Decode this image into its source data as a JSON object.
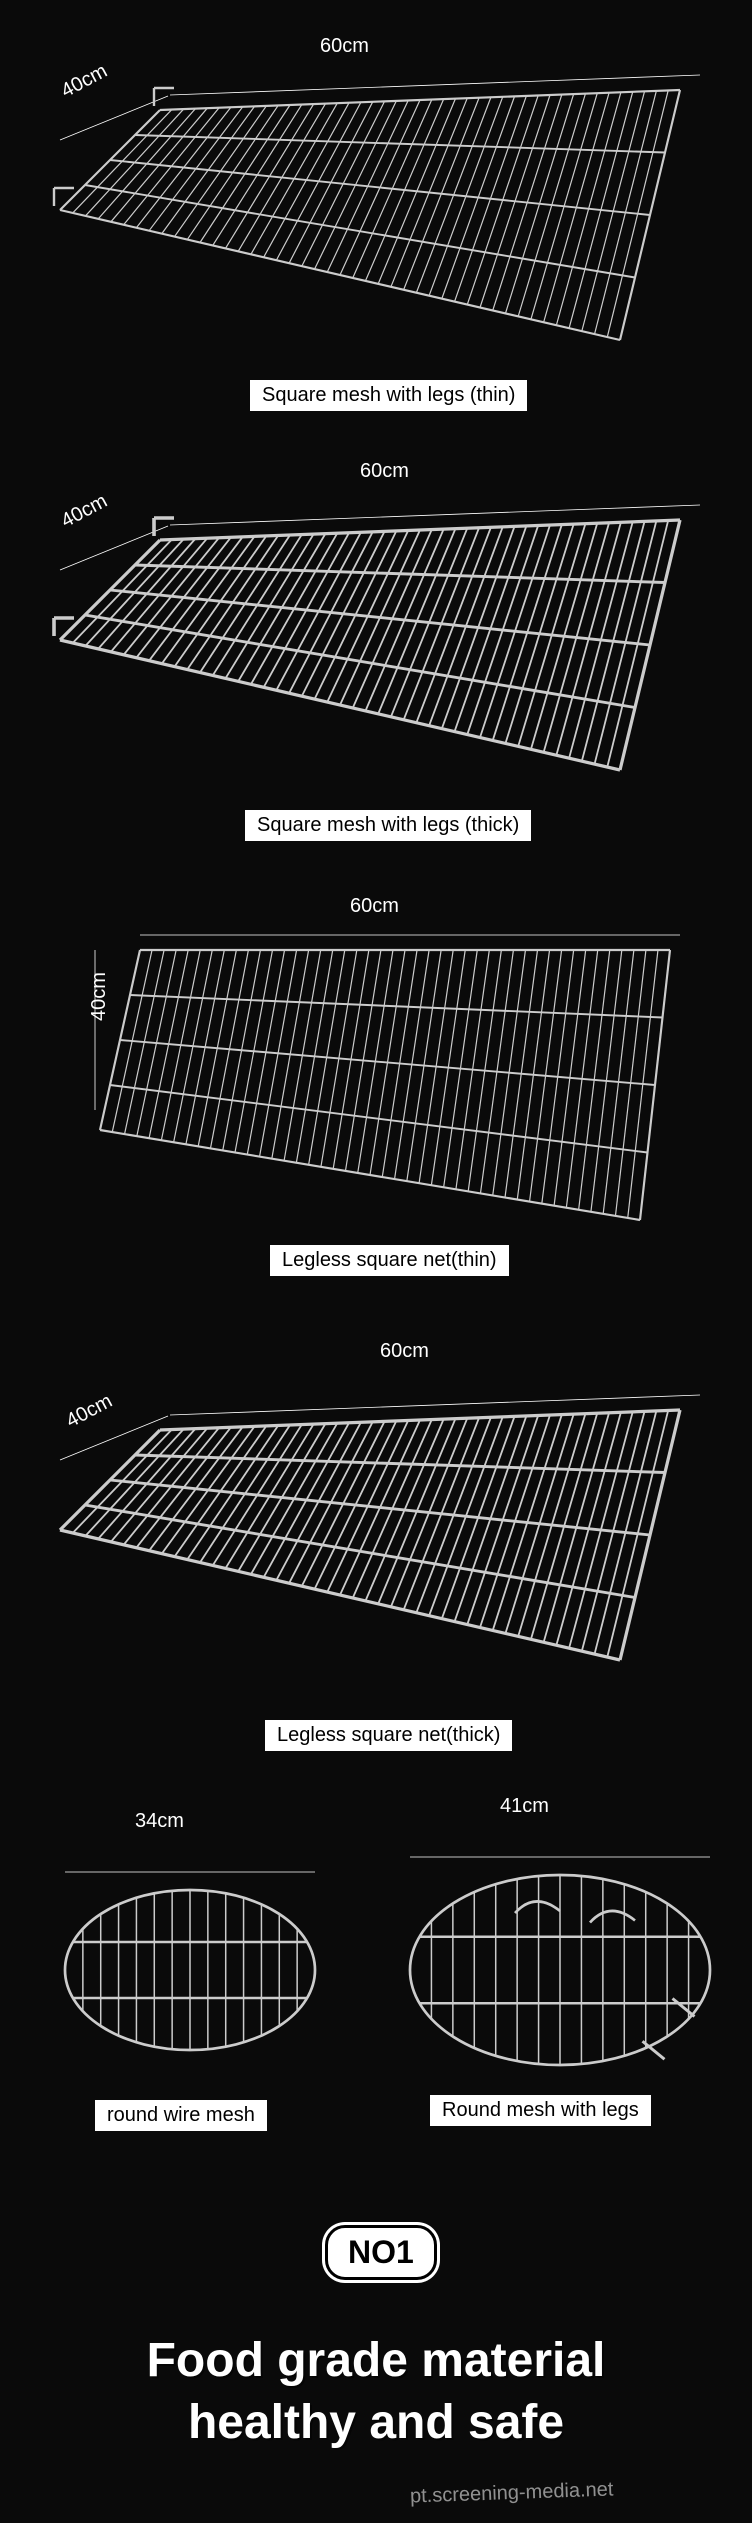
{
  "products": {
    "rect1": {
      "caption": "Square mesh with legs (thin)",
      "width_label": "60cm",
      "depth_label": "40cm"
    },
    "rect2": {
      "caption": "Square mesh with legs (thick)",
      "width_label": "60cm",
      "depth_label": "40cm"
    },
    "rect3": {
      "caption": "Legless square net(thin)",
      "width_label": "60cm",
      "depth_label": "40cm"
    },
    "rect4": {
      "caption": "Legless square net(thick)",
      "width_label": "60cm",
      "depth_label": "40cm"
    },
    "round1": {
      "caption": "round wire mesh",
      "diameter_label": "34cm"
    },
    "round2": {
      "caption": "Round mesh with legs",
      "diameter_label": "41cm"
    }
  },
  "badge": "NO1",
  "headline_line1": "Food grade material",
  "headline_line2": "healthy and safe",
  "watermark": "pt.screening-media.net",
  "colors": {
    "bg": "#0a0a0a",
    "mesh_stroke": "#cccccc",
    "dim_text": "#ffffff",
    "caption_bg": "#ffffff",
    "caption_text": "#000000"
  },
  "mesh_style": {
    "rect_width": 580,
    "rect_height": 300,
    "bars_vertical": 44,
    "bars_horizontal": 4,
    "stroke_width_thin": 1.2,
    "stroke_width_thick": 1.8,
    "perspective_skew": -10
  },
  "round_style": {
    "diameter_small": 260,
    "diameter_large": 300,
    "bars": 14,
    "stroke_width": 1.5
  }
}
